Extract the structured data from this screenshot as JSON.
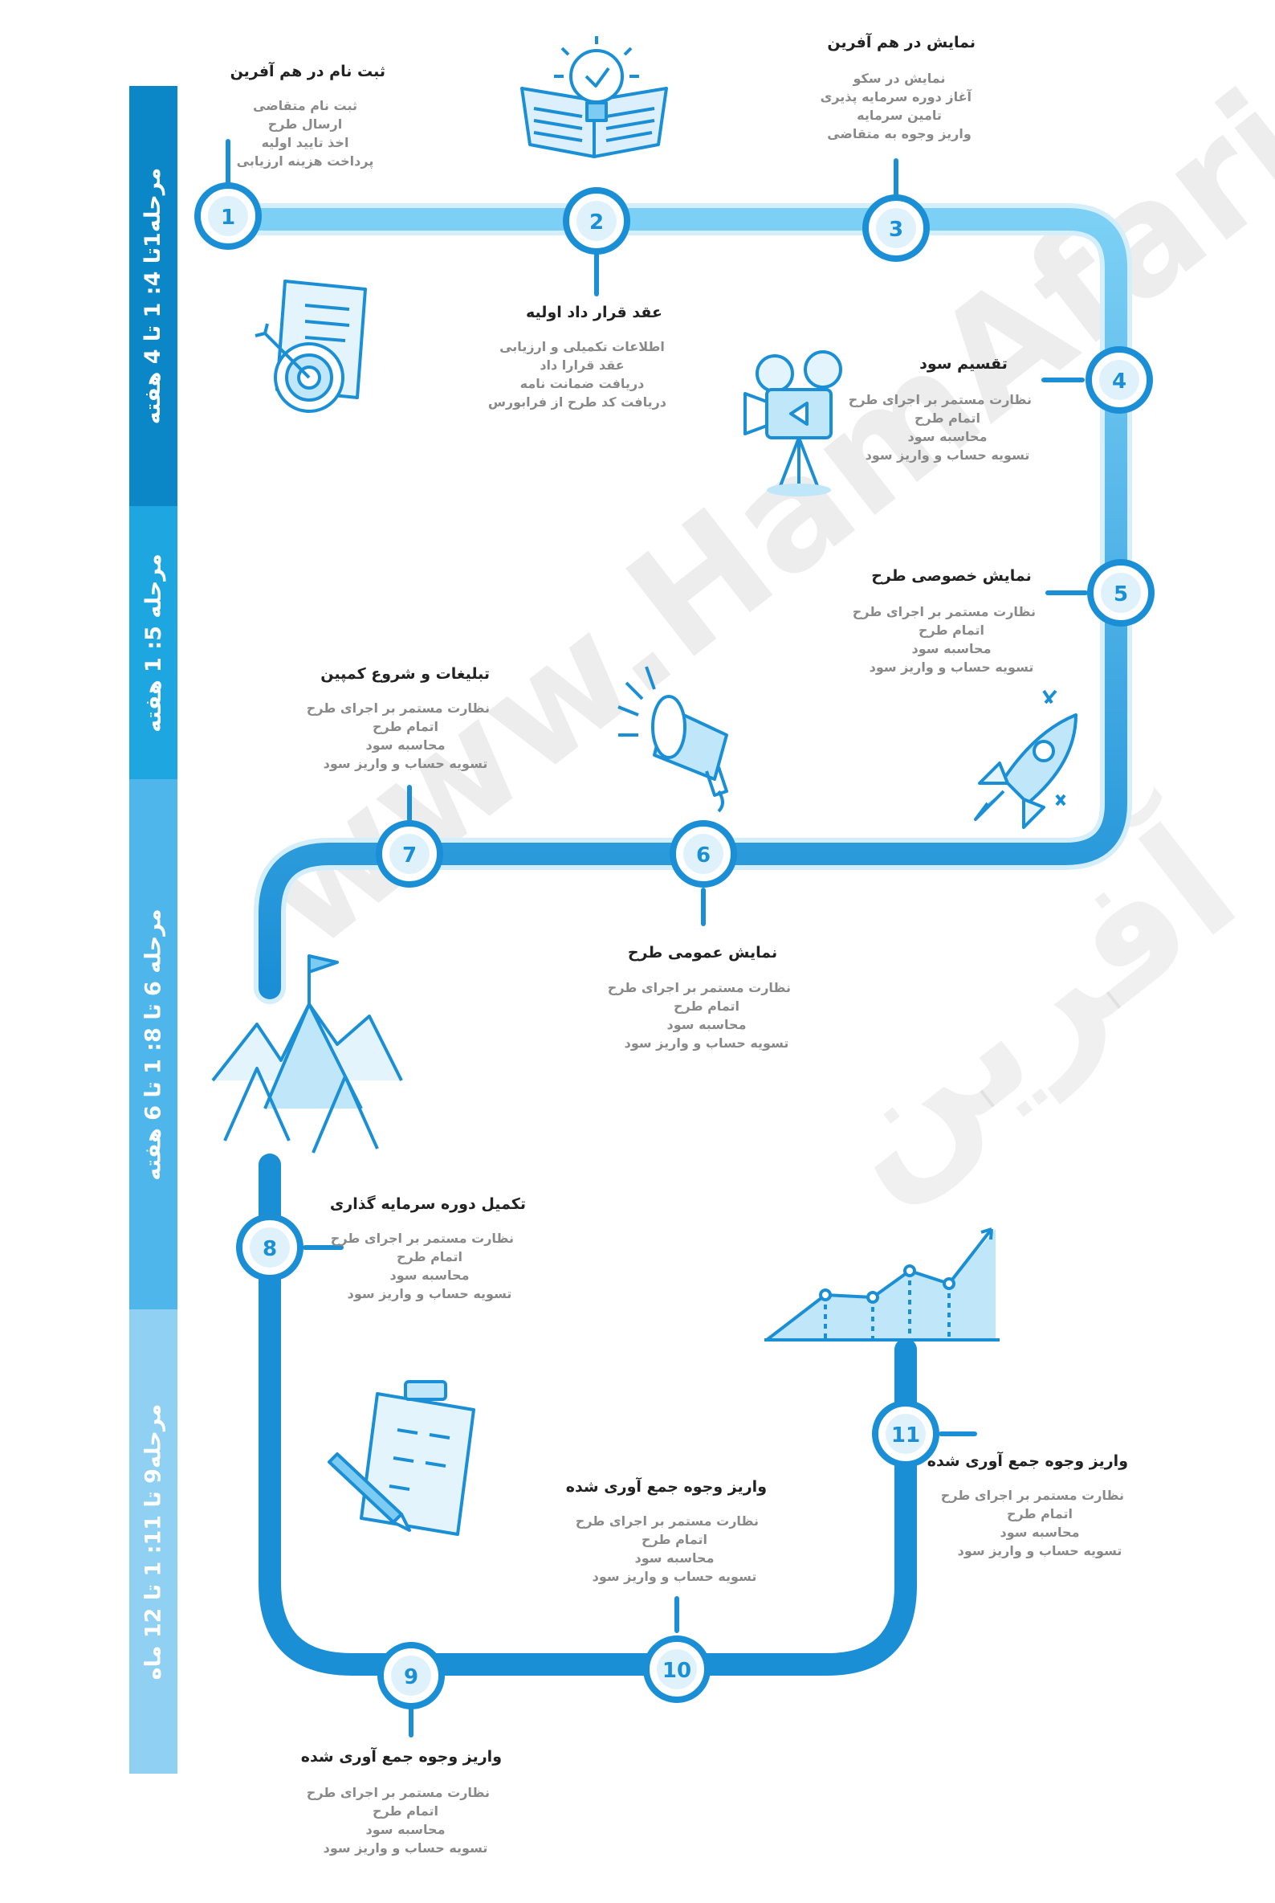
{
  "phases": [
    {
      "label": "مرحله1تا 4: 1 تا 4 هفته",
      "color": "#0b86c7"
    },
    {
      "label": "مرحله 5: 1 هفته",
      "color": "#1ea6e0"
    },
    {
      "label": "مرحله 6 تا 8: 1 تا 6 هفته",
      "color": "#4eb6ea"
    },
    {
      "label": "مرحله9 تا 11: 1 تا 12 ماه",
      "color": "#8fd0f3"
    }
  ],
  "steps": [
    {
      "num": "1",
      "title": "ثبت نام در هم آفرین",
      "items": [
        "ثبت نام متقاضی",
        "ارسال طرح",
        "اخذ تایید اولیه",
        "پرداخت هزینه ارزیابی"
      ]
    },
    {
      "num": "2",
      "title": "عقد قرار داد اولیه",
      "items": [
        "اطلاعات تکمیلی و ارزیابی",
        "عقد قرارا داد",
        "دریافت ضمانت نامه",
        "دریافت کد طرح از فرابورس"
      ]
    },
    {
      "num": "3",
      "title": "نمایش در هم آفرین",
      "items": [
        "نمایش در سکو",
        "آغاز دوره سرمایه پذیری",
        "تامین سرمایه",
        "واریز وجوه به متقاضی"
      ]
    },
    {
      "num": "4",
      "title": "تقسیم سود",
      "items": [
        "نظارت مستمر بر اجرای طرح",
        "اتمام طرح",
        "محاسبه سود",
        "تسویه حساب و واریز سود"
      ]
    },
    {
      "num": "5",
      "title": "نمایش خصوصی طرح",
      "items": [
        "نظارت مستمر بر اجرای طرح",
        "اتمام طرح",
        "محاسبه سود",
        "تسویه حساب و واریز سود"
      ]
    },
    {
      "num": "6",
      "title": "نمایش عمومی طرح",
      "items": [
        "نظارت مستمر بر اجرای طرح",
        "اتمام طرح",
        "محاسبه سود",
        "تسویه حساب و واریز سود"
      ]
    },
    {
      "num": "7",
      "title": "تبلیغات و شروع کمپین",
      "items": [
        "نظارت مستمر بر اجرای طرح",
        "اتمام طرح",
        "محاسبه سود",
        "تسویه حساب و واریز سود"
      ]
    },
    {
      "num": "8",
      "title": "تکمیل دوره سرمایه گذاری",
      "items": [
        "نظارت مستمر بر اجرای طرح",
        "اتمام طرح",
        "محاسبه سود",
        "تسویه حساب و واریز سود"
      ]
    },
    {
      "num": "9",
      "title": "واریز وجوه جمع آوری شده",
      "items": [
        "نظارت مستمر بر اجرای طرح",
        "اتمام طرح",
        "محاسبه سود",
        "تسویه حساب و واریز سود"
      ]
    },
    {
      "num": "10",
      "title": "واریز وجوه جمع آوری شده",
      "items": [
        "نظارت مستمر بر اجرای طرح",
        "اتمام طرح",
        "محاسبه سود",
        "تسویه حساب و واریز سود"
      ]
    },
    {
      "num": "11",
      "title": "واریز وجوه جمع آوری شده",
      "items": [
        "نظارت مستمر بر اجرای طرح",
        "اتمام طرح",
        "محاسبه سود",
        "تسویه حساب و واریز سود"
      ]
    }
  ],
  "icons": [
    "lightbulb-book-icon",
    "target-document-icon",
    "film-camera-icon",
    "megaphone-icon",
    "rocket-icon",
    "mountain-flag-icon",
    "clipboard-checklist-icon",
    "growth-chart-icon"
  ],
  "watermark": {
    "latin": "www.HamAfarin.ir",
    "persian": "هم آفرین"
  },
  "colors": {
    "primary": "#1a8fd6",
    "light": "#7ccbf2",
    "text": "#222222",
    "muted": "#8a8a8a"
  }
}
